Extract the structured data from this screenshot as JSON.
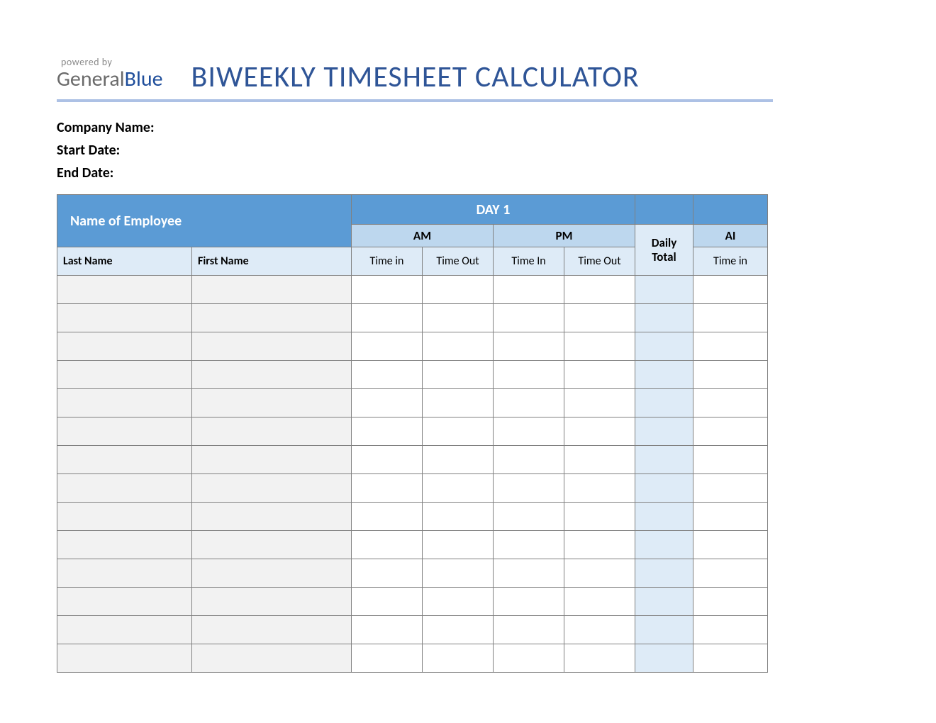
{
  "logo": {
    "powered_by": "powered by",
    "general": "General",
    "blue": "Blue"
  },
  "title": "BIWEEKLY TIMESHEET CALCULATOR",
  "meta": {
    "company_label": "Company Name:",
    "start_label": "Start Date:",
    "end_label": "End Date:"
  },
  "table": {
    "columns": {
      "name_header": "Name of Employee",
      "day1": "DAY 1",
      "am": "AM",
      "pm": "PM",
      "daily_total": "Daily Total",
      "last_name": "Last Name",
      "first_name": "First Name",
      "time_in": "Time in",
      "time_out": "Time Out",
      "time_in2": "Time In",
      "am2": "AI"
    },
    "col_widths": {
      "last_name": 190,
      "first_name": 225,
      "time": 100,
      "daily_total": 82,
      "time_partial": 105
    },
    "row_count": 14,
    "colors": {
      "header_main_bg": "#5b9bd5",
      "header_main_fg": "#ffffff",
      "header_sub1_bg": "#bdd7ee",
      "header_sub2_bg": "#deebf7",
      "name_cell_bg": "#f2f2f2",
      "daily_total_cell_bg": "#deebf7",
      "border": "#808080",
      "divider": "#adc1e5",
      "title_color": "#2f5597"
    },
    "fonts": {
      "title_size": 42,
      "meta_size": 20,
      "header_main_size": 20,
      "header_sub_size": 17,
      "cell_header_size": 16
    }
  }
}
